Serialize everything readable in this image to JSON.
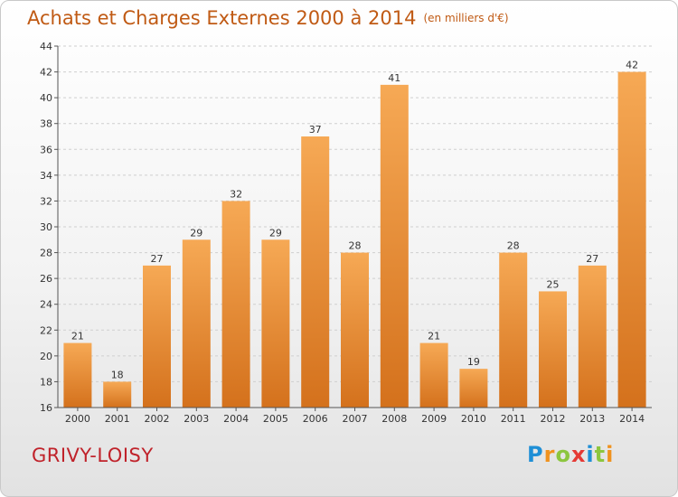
{
  "header": {
    "title": "Achats et Charges Externes 2000 à 2014",
    "subtitle": "(en milliers d'€)"
  },
  "footer": {
    "town": "GRIVY-LOISY",
    "logo_letters": [
      "P",
      "r",
      "o",
      "x",
      "i",
      "t",
      "i"
    ],
    "logo_colors": [
      "#1f8fd6",
      "#f0921e",
      "#8cc63f",
      "#e53935",
      "#1f8fd6",
      "#8cc63f",
      "#f0921e"
    ]
  },
  "chart_data": {
    "type": "bar",
    "title": "Achats et Charges Externes 2000 à 2014",
    "subtitle": "(en milliers d'€)",
    "categories": [
      "2000",
      "2001",
      "2002",
      "2003",
      "2004",
      "2005",
      "2006",
      "2007",
      "2008",
      "2009",
      "2010",
      "2011",
      "2012",
      "2013",
      "2014"
    ],
    "values": [
      21,
      18,
      27,
      29,
      32,
      29,
      37,
      28,
      41,
      21,
      19,
      28,
      25,
      27,
      42
    ],
    "ylim": [
      16,
      44
    ],
    "yticks": [
      16,
      18,
      20,
      22,
      24,
      26,
      28,
      30,
      32,
      34,
      36,
      38,
      40,
      42,
      44
    ],
    "grid": true,
    "colors": {
      "bar_top": "#f6a955",
      "bar_bottom": "#d4711c",
      "grid": "#cfcfcf",
      "axis": "#555555",
      "text": "#333333"
    }
  }
}
